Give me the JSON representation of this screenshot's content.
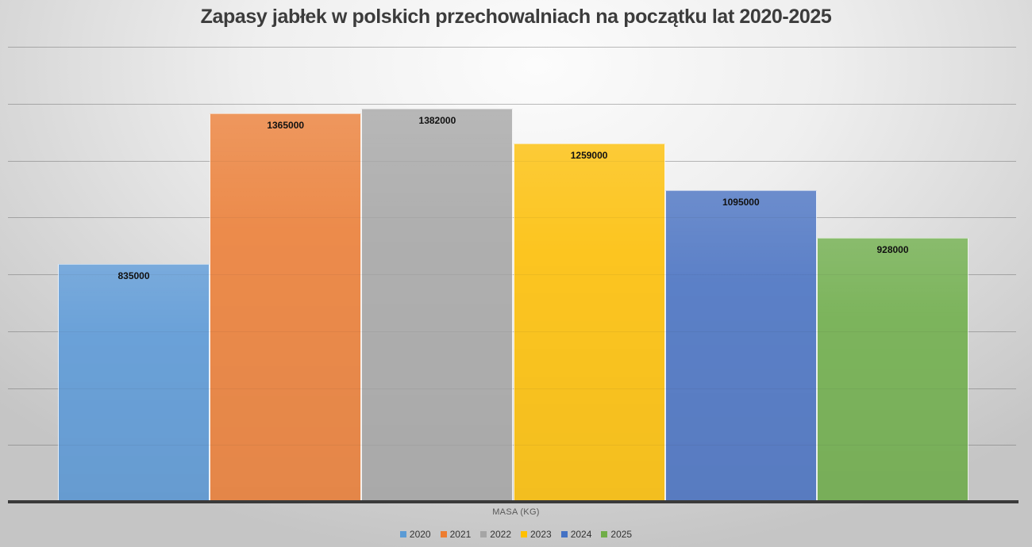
{
  "title": "Zapasy jabłek w polskich przechowalniach na początku lat 2020-2025",
  "chart_data": {
    "type": "bar",
    "title": "Zapasy jabłek w polskich przechowalniach na początku lat 2020-2025",
    "categories": [
      "2020",
      "2021",
      "2022",
      "2023",
      "2024",
      "2025"
    ],
    "values": [
      835000,
      1365000,
      1382000,
      1259000,
      1095000,
      928000
    ],
    "data_labels": [
      "835000",
      "1365000",
      "1382000",
      "1259000",
      "1095000",
      "928000"
    ],
    "bar_colors": [
      "#6AA1D8",
      "#EC8B4B",
      "#AFAFAF",
      "#FCC520",
      "#5B80C7",
      "#7CB45C"
    ],
    "xlabel": "MASA (KG)",
    "ylabel": "",
    "ylim": [
      0,
      1600000
    ],
    "grid_step": 200000,
    "grid": true,
    "legend_position": "bottom",
    "tick_labels_visible": false
  },
  "legend": {
    "items": [
      {
        "label": "2020",
        "color": "#5B9BD5"
      },
      {
        "label": "2021",
        "color": "#ED7D31"
      },
      {
        "label": "2022",
        "color": "#A5A5A5"
      },
      {
        "label": "2023",
        "color": "#FFC000"
      },
      {
        "label": "2024",
        "color": "#4472C4"
      },
      {
        "label": "2025",
        "color": "#70AD47"
      }
    ]
  }
}
